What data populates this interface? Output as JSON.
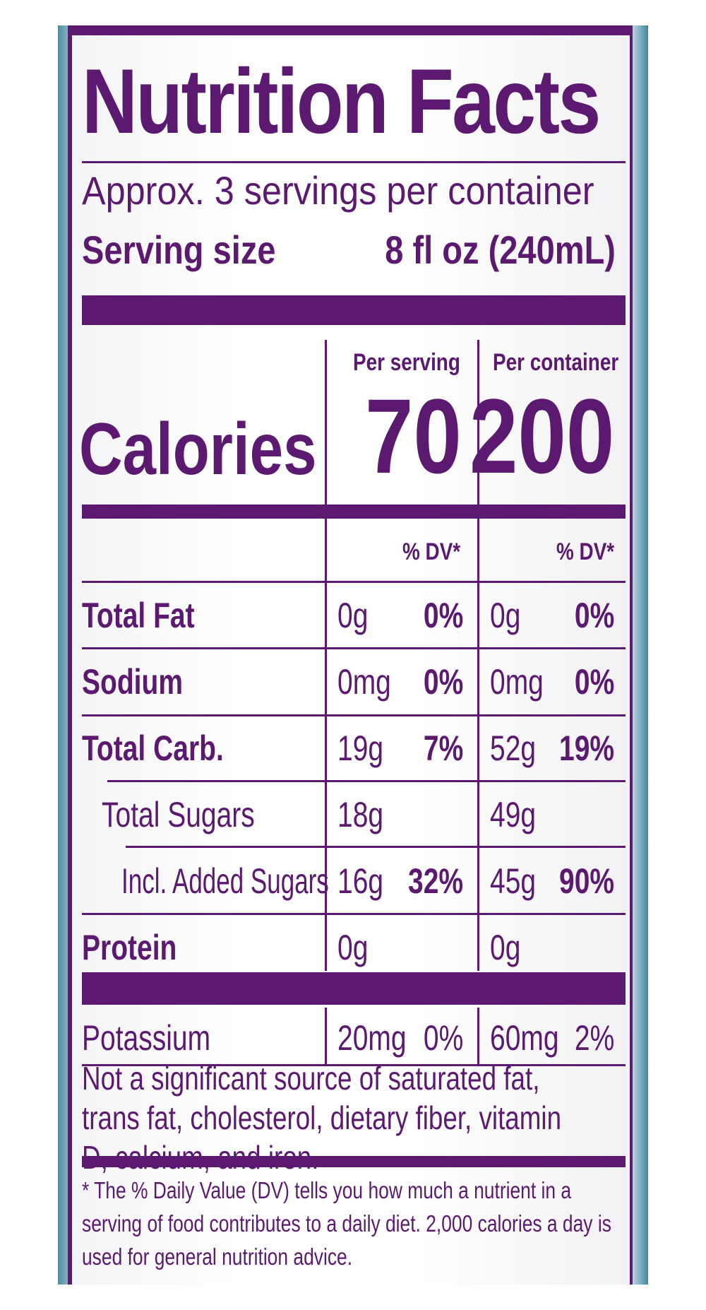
{
  "label": {
    "title": "Nutrition Facts",
    "servings_per_container": "Approx. 3 servings per container",
    "serving_size_label": "Serving size",
    "serving_size_value": "8 fl oz (240mL)",
    "column_headers": {
      "per_serving": "Per serving",
      "per_container": "Per container"
    },
    "calories": {
      "label": "Calories",
      "per_serving": "70",
      "per_container": "200"
    },
    "dv_header": "% DV*",
    "nutrients": [
      {
        "name": "Total Fat",
        "bold": true,
        "serving_amount": "0g",
        "serving_dv": "0%",
        "container_amount": "0g",
        "container_dv": "0%"
      },
      {
        "name": "Sodium",
        "bold": true,
        "serving_amount": "0mg",
        "serving_dv": "0%",
        "container_amount": "0mg",
        "container_dv": "0%"
      },
      {
        "name": "Total Carb.",
        "bold": true,
        "serving_amount": "19g",
        "serving_dv": "7%",
        "container_amount": "52g",
        "container_dv": "19%"
      },
      {
        "name": "Total Sugars",
        "bold": false,
        "serving_amount": "18g",
        "serving_dv": "",
        "container_amount": "49g",
        "container_dv": ""
      },
      {
        "name": "Incl. Added Sugars",
        "bold": false,
        "serving_amount": "16g",
        "serving_dv": "32%",
        "container_amount": "45g",
        "container_dv": "90%"
      },
      {
        "name": "Protein",
        "bold": true,
        "serving_amount": "0g",
        "serving_dv": "",
        "container_amount": "0g",
        "container_dv": ""
      },
      {
        "name": "Potassium",
        "bold": false,
        "serving_amount": "20mg",
        "serving_dv": "0%",
        "container_amount": "60mg",
        "container_dv": "2%"
      }
    ],
    "not_significant_note": "Not a significant source of saturated fat, trans fat, cholesterol, dietary fiber, vitamin D, calcium, and iron.",
    "footnote": "* The % Daily Value (DV) tells you how much a nutrient in a serving of food contributes to a daily diet. 2,000 calories a day is used for general nutrition advice."
  },
  "colors": {
    "ink": "#5b1a6f",
    "background": "#ffffff",
    "bottle_edge": "#4f8fa3"
  }
}
